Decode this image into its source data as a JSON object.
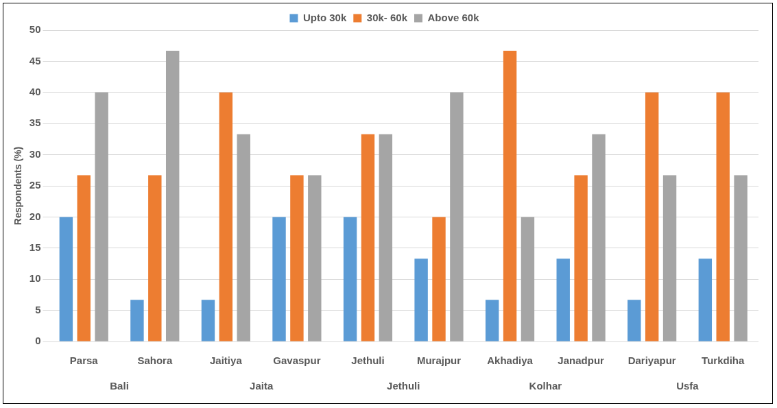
{
  "chart_data": {
    "type": "bar",
    "ylabel": "Respondents (%)",
    "categories": [
      "Parsa",
      "Sahora",
      "Jaitiya",
      "Gavaspur",
      "Jethuli",
      "Murajpur",
      "Akhadiya",
      "Janadpur",
      "Dariyapur",
      "Turkdiha"
    ],
    "series": [
      {
        "name": "Upto 30k",
        "color": "#5b9bd5",
        "values": [
          20,
          6.7,
          6.7,
          20,
          20,
          13.3,
          6.7,
          13.3,
          6.7,
          13.3
        ]
      },
      {
        "name": "30k- 60k",
        "color": "#ed7d31",
        "values": [
          26.7,
          26.7,
          40,
          26.7,
          33.3,
          20,
          46.7,
          26.7,
          40,
          40
        ]
      },
      {
        "name": "Above 60k",
        "color": "#a5a5a5",
        "values": [
          40,
          46.7,
          33.3,
          26.7,
          33.3,
          40,
          20,
          33.3,
          26.7,
          26.7
        ]
      }
    ],
    "annotations": [
      "Bali",
      "Jaita",
      "Jethuli",
      "Kolhar",
      "Usfa"
    ],
    "ylim": [
      0,
      50
    ],
    "yticks": [
      0,
      5,
      10,
      15,
      20,
      25,
      30,
      35,
      40,
      45,
      50
    ],
    "grid": "y",
    "legend": "top"
  }
}
